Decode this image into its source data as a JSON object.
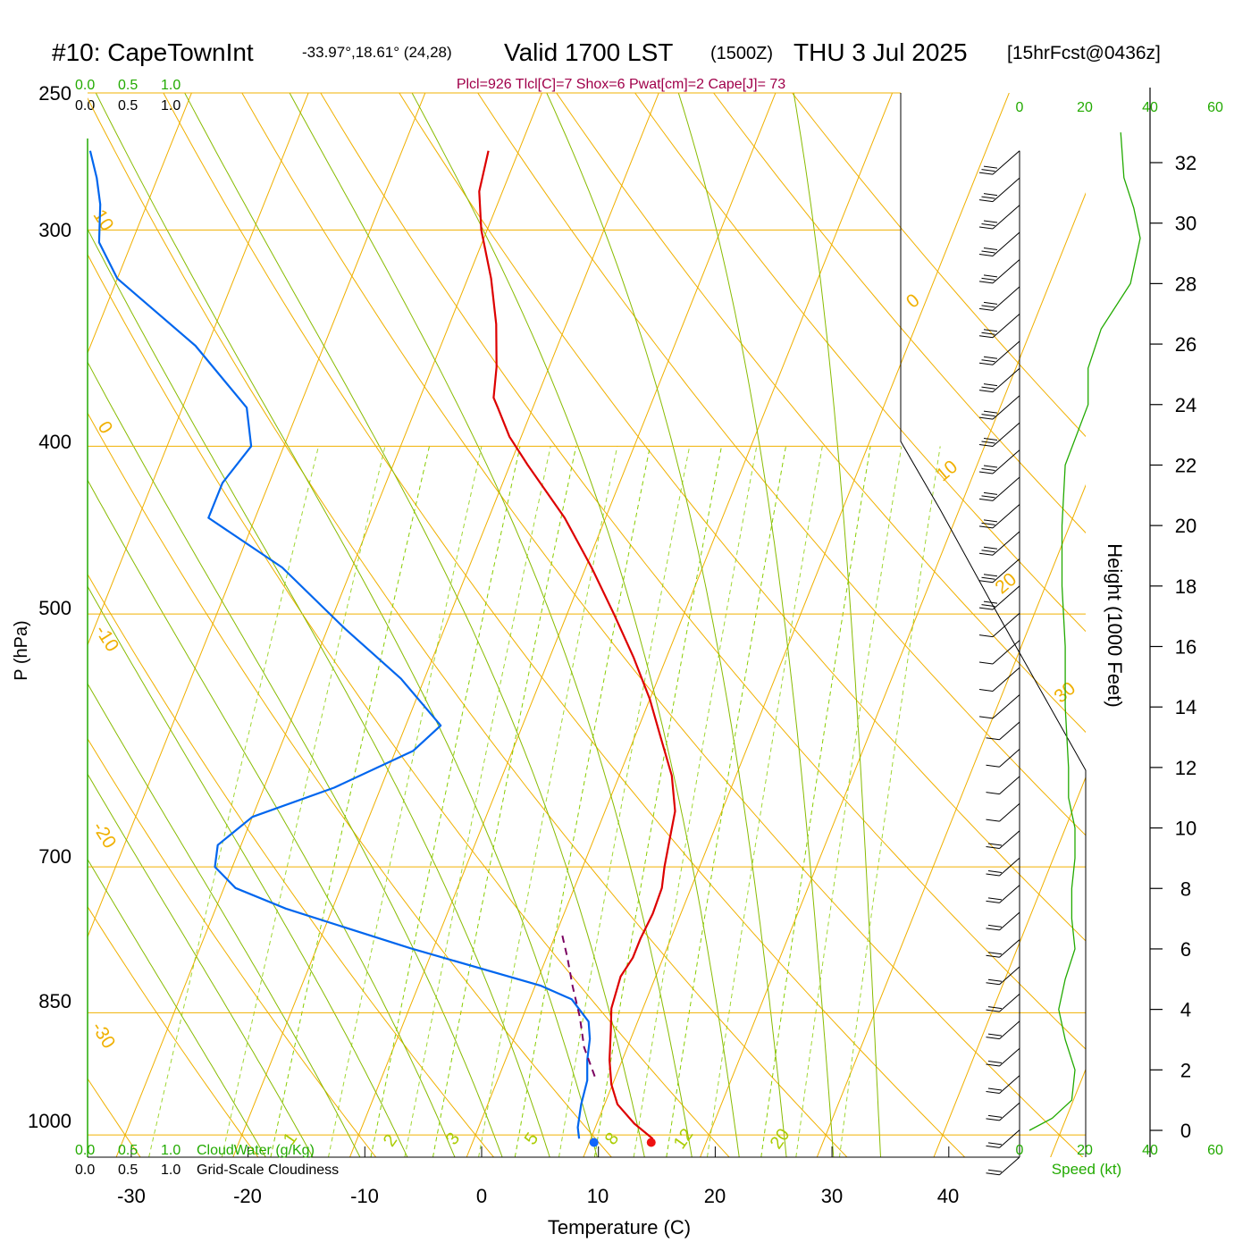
{
  "header": {
    "station": "#10: CapeTownInt",
    "location": "-33.97°,18.61° (24,28)",
    "valid_main": "Valid 1700 LST",
    "valid_utc": "(1500Z)",
    "date": "THU 3 Jul 2025",
    "forecast": "[15hrFcst@0436z]",
    "indices": "Plcl=926 Tlcl[C]=7 Shox=6 Pwat[cm]=2 Cape[J]= 73"
  },
  "colors": {
    "temperature": "#dd0000",
    "dewpoint": "#0066ee",
    "isotherm": "#f0b000",
    "adiabat": "#88bb00",
    "mixing_ratio": "#88cc00",
    "parcel": "#7a0060",
    "wind_speed_profile": "#22aa00"
  },
  "chart_data": {
    "type": "line",
    "title": "#10: CapeTownInt",
    "xlabel": "Temperature (C)",
    "ylabel": "P (hPa)",
    "x_ticks": [
      "-30",
      "-20",
      "-10",
      "0",
      "10",
      "20",
      "30",
      "40"
    ],
    "x_tick_values": [
      -30,
      -20,
      -10,
      0,
      10,
      20,
      30,
      40
    ],
    "xlim": [
      -35,
      42
    ],
    "pressure_levels": [
      250,
      300,
      400,
      500,
      700,
      850,
      1000
    ],
    "pressure_labels": [
      "250",
      "300",
      "400",
      "500",
      "700",
      "850",
      "1000"
    ],
    "ylim": [
      250,
      1030
    ],
    "isotherm_labels": [
      {
        "text": "10",
        "t": 10
      },
      {
        "text": "0",
        "t": 0
      },
      {
        "text": "-10",
        "t": -10
      },
      {
        "text": "-20",
        "t": -20
      },
      {
        "text": "-30",
        "t": -30
      },
      {
        "text": "0",
        "t": 0
      },
      {
        "text": "10",
        "t": 10
      },
      {
        "text": "20",
        "t": 20
      },
      {
        "text": "30",
        "t": 30
      }
    ],
    "mixing_ratio_labels": [
      "1",
      "2",
      "3",
      "5",
      "8",
      "12",
      "20"
    ],
    "mixing_ratio_values": [
      1,
      2,
      3,
      5,
      8,
      12,
      20
    ],
    "series": [
      {
        "name": "Temperature",
        "points": [
          {
            "p": 1005,
            "t": 15.3
          },
          {
            "p": 985,
            "t": 13.2
          },
          {
            "p": 960,
            "t": 11.1
          },
          {
            "p": 935,
            "t": 9.9
          },
          {
            "p": 905,
            "t": 8.9
          },
          {
            "p": 870,
            "t": 8.0
          },
          {
            "p": 845,
            "t": 7.3
          },
          {
            "p": 810,
            "t": 7.0
          },
          {
            "p": 790,
            "t": 7.4
          },
          {
            "p": 770,
            "t": 7.4
          },
          {
            "p": 745,
            "t": 7.6
          },
          {
            "p": 720,
            "t": 7.5
          },
          {
            "p": 700,
            "t": 7.0
          },
          {
            "p": 675,
            "t": 6.5
          },
          {
            "p": 650,
            "t": 6.0
          },
          {
            "p": 620,
            "t": 4.5
          },
          {
            "p": 590,
            "t": 2.3
          },
          {
            "p": 560,
            "t": 0.0
          },
          {
            "p": 530,
            "t": -2.8
          },
          {
            "p": 500,
            "t": -6.0
          },
          {
            "p": 470,
            "t": -9.5
          },
          {
            "p": 440,
            "t": -13.5
          },
          {
            "p": 410,
            "t": -18.5
          },
          {
            "p": 395,
            "t": -21.0
          },
          {
            "p": 380,
            "t": -23.0
          },
          {
            "p": 375,
            "t": -23.7
          },
          {
            "p": 360,
            "t": -24.5
          },
          {
            "p": 340,
            "t": -26.0
          },
          {
            "p": 320,
            "t": -28.0
          },
          {
            "p": 300,
            "t": -30.5
          },
          {
            "p": 285,
            "t": -32.0
          },
          {
            "p": 270,
            "t": -32.6
          }
        ]
      },
      {
        "name": "Dewpoint",
        "points": [
          {
            "p": 1005,
            "t": 9.0
          },
          {
            "p": 990,
            "t": 8.5
          },
          {
            "p": 960,
            "t": 8.0
          },
          {
            "p": 930,
            "t": 7.7
          },
          {
            "p": 905,
            "t": 7.0
          },
          {
            "p": 880,
            "t": 6.5
          },
          {
            "p": 860,
            "t": 5.8
          },
          {
            "p": 835,
            "t": 3.6
          },
          {
            "p": 820,
            "t": 0.5
          },
          {
            "p": 780,
            "t": -12.0
          },
          {
            "p": 740,
            "t": -24.0
          },
          {
            "p": 720,
            "t": -29.0
          },
          {
            "p": 700,
            "t": -31.5
          },
          {
            "p": 680,
            "t": -32.0
          },
          {
            "p": 655,
            "t": -30.0
          },
          {
            "p": 630,
            "t": -24.0
          },
          {
            "p": 600,
            "t": -18.5
          },
          {
            "p": 580,
            "t": -17.0
          },
          {
            "p": 545,
            "t": -22.0
          },
          {
            "p": 510,
            "t": -28.5
          },
          {
            "p": 470,
            "t": -36.0
          },
          {
            "p": 440,
            "t": -44.0
          },
          {
            "p": 420,
            "t": -44.0
          },
          {
            "p": 400,
            "t": -42.8
          },
          {
            "p": 380,
            "t": -44.5
          },
          {
            "p": 350,
            "t": -51.0
          },
          {
            "p": 320,
            "t": -60.0
          },
          {
            "p": 305,
            "t": -62.8
          },
          {
            "p": 290,
            "t": -64.0
          },
          {
            "p": 280,
            "t": -65.2
          },
          {
            "p": 270,
            "t": -66.7
          }
        ]
      },
      {
        "name": "Parcel",
        "points": [
          {
            "p": 925,
            "t": 8.2
          },
          {
            "p": 890,
            "t": 6.3
          },
          {
            "p": 855,
            "t": 4.9
          },
          {
            "p": 820,
            "t": 3.2
          },
          {
            "p": 790,
            "t": 1.8
          },
          {
            "p": 765,
            "t": 0.5
          }
        ]
      }
    ],
    "surface_markers": [
      {
        "name": "Surface temperature",
        "p": 1010,
        "t": 15.3
      },
      {
        "name": "Surface dewpoint",
        "p": 1010,
        "t": 10.4
      }
    ],
    "height_axis": {
      "label": "Height (1000 Feet)",
      "ticks": [
        "0",
        "2",
        "4",
        "6",
        "8",
        "10",
        "12",
        "14",
        "16",
        "18",
        "20",
        "22",
        "24",
        "26",
        "28",
        "30",
        "32"
      ],
      "tick_values": [
        0,
        2,
        4,
        6,
        8,
        10,
        12,
        14,
        16,
        18,
        20,
        22,
        24,
        26,
        28,
        30,
        32
      ],
      "ylim": [
        0,
        33
      ]
    },
    "wind_speed_profile": {
      "xlabel": "Speed (kt)",
      "x_ticks": [
        "0",
        "20",
        "40",
        "60"
      ],
      "x_tick_values": [
        0,
        20,
        40,
        60
      ],
      "xlim": [
        0,
        60
      ],
      "points": [
        {
          "h": 0.0,
          "s": 3
        },
        {
          "h": 0.4,
          "s": 10
        },
        {
          "h": 1.0,
          "s": 16
        },
        {
          "h": 2.0,
          "s": 17
        },
        {
          "h": 3.0,
          "s": 14
        },
        {
          "h": 4.0,
          "s": 12
        },
        {
          "h": 5.0,
          "s": 14
        },
        {
          "h": 6.0,
          "s": 17
        },
        {
          "h": 7.0,
          "s": 16
        },
        {
          "h": 8.0,
          "s": 16
        },
        {
          "h": 9.0,
          "s": 17
        },
        {
          "h": 10.0,
          "s": 17
        },
        {
          "h": 11.0,
          "s": 15
        },
        {
          "h": 12.0,
          "s": 15
        },
        {
          "h": 14.0,
          "s": 14
        },
        {
          "h": 16.0,
          "s": 14
        },
        {
          "h": 18.0,
          "s": 13
        },
        {
          "h": 20.0,
          "s": 13
        },
        {
          "h": 22.0,
          "s": 14
        },
        {
          "h": 24.0,
          "s": 21
        },
        {
          "h": 25.2,
          "s": 21
        },
        {
          "h": 26.5,
          "s": 25
        },
        {
          "h": 28.0,
          "s": 34
        },
        {
          "h": 29.5,
          "s": 37
        },
        {
          "h": 30.5,
          "s": 35
        },
        {
          "h": 31.5,
          "s": 32
        },
        {
          "h": 33.0,
          "s": 31
        }
      ]
    },
    "wind_barbs": {
      "top_pressure": 270,
      "bottom_pressure": 1030,
      "count": 38
    },
    "cloud_legend": [
      {
        "scale": [
          "0.0",
          "0.5",
          "1.0"
        ],
        "label": "CloudWater (g/Kg)"
      },
      {
        "scale": [
          "0.0",
          "0.5",
          "1.0"
        ],
        "label": "Grid-Scale Cloudiness"
      }
    ]
  }
}
